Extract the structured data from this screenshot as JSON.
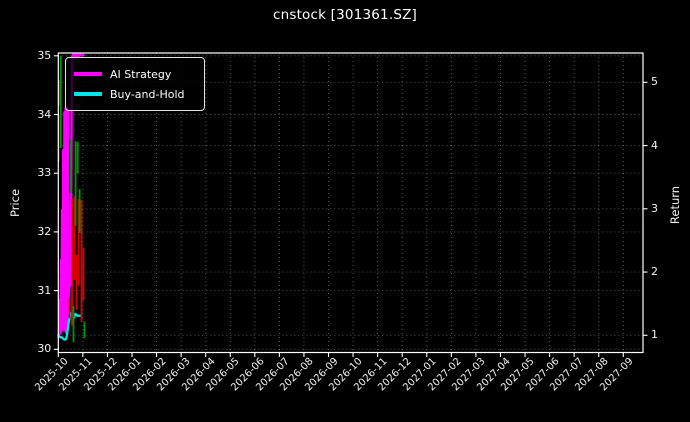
{
  "title": "cnstock [301361.SZ]",
  "axes": {
    "left": {
      "label": "Price",
      "ticks": [
        35,
        34,
        33,
        32,
        31,
        30
      ]
    },
    "right": {
      "label": "Return",
      "ticks": [
        5,
        4,
        3,
        2,
        1
      ]
    },
    "x": {
      "ticks": [
        "2025-10",
        "2025-11",
        "2025-12",
        "2026-01",
        "2026-02",
        "2026-03",
        "2026-04",
        "2026-05",
        "2026-06",
        "2026-07",
        "2026-08",
        "2026-09",
        "2026-10",
        "2026-11",
        "2026-12",
        "2027-01",
        "2027-02",
        "2027-03",
        "2027-04",
        "2027-05",
        "2027-06",
        "2027-07",
        "2027-08",
        "2027-09"
      ]
    }
  },
  "legend": {
    "entries": [
      {
        "label": "AI Strategy",
        "color": "#ff00ff"
      },
      {
        "label": "Buy-and-Hold",
        "color": "#00e5e5"
      }
    ]
  },
  "colors": {
    "background": "#000000",
    "text": "#f2f2f2",
    "spine": "#ffffff",
    "grid": "rgba(255,255,255,0.38)",
    "ai_strategy": "#ff00ff",
    "buy_and_hold": "#00e5e5",
    "candle_up": "#009600",
    "candle_down": "#dc0000"
  },
  "chart_data": {
    "type": "line",
    "title": "cnstock [301361.SZ]",
    "xlabel": "",
    "ylabel_left": "Price",
    "ylabel_right": "Return",
    "x_unit": "months offset from 2025-10 tick",
    "x_tick_labels": [
      "2025-10",
      "2025-11",
      "2025-12",
      "2026-01",
      "2026-02",
      "2026-03",
      "2026-04",
      "2026-05",
      "2026-06",
      "2026-07",
      "2026-08",
      "2026-09",
      "2026-10",
      "2026-11",
      "2026-12",
      "2027-01",
      "2027-02",
      "2027-03",
      "2027-04",
      "2027-05",
      "2027-06",
      "2027-07",
      "2027-08",
      "2027-09"
    ],
    "price_ylim": [
      29.95,
      35.05
    ],
    "return_ylim": [
      0.73,
      5.46
    ],
    "grid": true,
    "legend_position": "upper left",
    "series": [
      {
        "name": "AI Strategy",
        "axis": "return",
        "color": "#ff00ff",
        "x": [
          0.008,
          0.037,
          0.061,
          0.081,
          0.106,
          0.126,
          0.151,
          0.175,
          0.199,
          0.224,
          0.248,
          0.273,
          0.297,
          0.322,
          0.346,
          0.37,
          0.395,
          0.419,
          0.444,
          0.484,
          0.509,
          0.533,
          0.553,
          0.619,
          0.68,
          0.741,
          0.802,
          0.883,
          0.944,
          1.026
        ],
        "values": [
          0.97,
          1.12,
          1.56,
          1.02,
          2.19,
          1.07,
          2.98,
          1.08,
          3.93,
          1.15,
          4.53,
          1.07,
          4.59,
          1.04,
          4.61,
          1.02,
          4.56,
          1.24,
          1.84,
          1.78,
          1.83,
          3.77,
          5.4,
          5.45,
          5.38,
          5.45,
          5.4,
          5.45,
          5.42,
          5.43
        ]
      },
      {
        "name": "Buy-and-Hold",
        "axis": "return",
        "color": "#00e5e5",
        "x": [
          0.008,
          0.069,
          0.13,
          0.191,
          0.252,
          0.313,
          0.346,
          0.395,
          0.456,
          0.517,
          0.558,
          0.598,
          0.639,
          0.7,
          0.761,
          0.823,
          0.884,
          0.924
        ],
        "values": [
          1.0,
          0.97,
          0.97,
          0.95,
          0.93,
          0.94,
          0.99,
          1.13,
          1.27,
          1.35,
          1.33,
          1.25,
          1.28,
          1.34,
          1.31,
          1.31,
          1.31,
          1.31
        ]
      }
    ],
    "candles": {
      "axis": "price",
      "up_color": "#009600",
      "down_color": "#dc0000",
      "items": [
        {
          "x": 0.012,
          "high": 34.01,
          "low": 33.19,
          "dir": "down"
        },
        {
          "x": 0.028,
          "high": 34.59,
          "low": 34.15,
          "dir": "down"
        },
        {
          "x": 0.102,
          "high": 35.0,
          "low": 33.43,
          "dir": "up"
        },
        {
          "x": 0.456,
          "high": 30.87,
          "low": 30.53,
          "dir": "down"
        },
        {
          "x": 0.509,
          "high": 33.57,
          "low": 32.66,
          "dir": "up"
        },
        {
          "x": 0.558,
          "high": 32.56,
          "low": 30.4,
          "dir": "down"
        },
        {
          "x": 0.619,
          "high": 30.74,
          "low": 30.12,
          "dir": "up"
        },
        {
          "x": 0.659,
          "high": 32.61,
          "low": 31.18,
          "dir": "down"
        },
        {
          "x": 0.704,
          "high": 33.55,
          "low": 32.1,
          "dir": "up"
        },
        {
          "x": 0.741,
          "high": 31.61,
          "low": 30.67,
          "dir": "down"
        },
        {
          "x": 0.79,
          "high": 33.53,
          "low": 33.0,
          "dir": "up"
        },
        {
          "x": 0.822,
          "high": 32.56,
          "low": 31.08,
          "dir": "down"
        },
        {
          "x": 0.867,
          "high": 32.73,
          "low": 31.98,
          "dir": "up"
        },
        {
          "x": 0.944,
          "high": 32.54,
          "low": 30.47,
          "dir": "down"
        },
        {
          "x": 1.026,
          "high": 31.73,
          "low": 30.84,
          "dir": "down"
        },
        {
          "x": 1.066,
          "high": 30.47,
          "low": 30.19,
          "dir": "up"
        }
      ]
    }
  }
}
